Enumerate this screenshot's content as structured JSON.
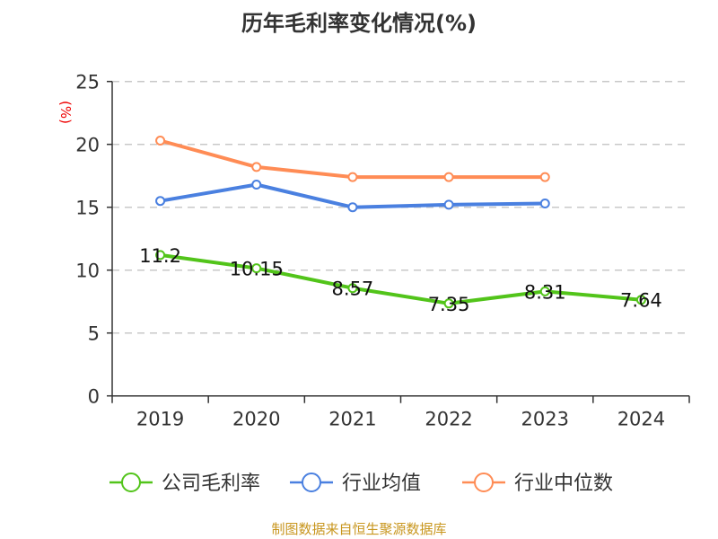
{
  "chart_data": {
    "type": "line",
    "title": "历年毛利率变化情况(%)",
    "ylabel": "(%)",
    "xlabel": "",
    "ylim": [
      0,
      25
    ],
    "yticks": [
      0,
      5,
      10,
      15,
      20,
      25
    ],
    "grid": true,
    "legend_position": "bottom",
    "categories": [
      "2019",
      "2020",
      "2021",
      "2022",
      "2023",
      "2024"
    ],
    "series": [
      {
        "name": "公司毛利率",
        "color": "#52c41a",
        "values": [
          11.2,
          10.15,
          8.57,
          7.35,
          8.31,
          7.64
        ],
        "labels": [
          "11.2",
          "10.15",
          "8.57",
          "7.35",
          "8.31",
          "7.64"
        ]
      },
      {
        "name": "行业均值",
        "color": "#4a80e0",
        "values": [
          15.5,
          16.8,
          15.0,
          15.2,
          15.3,
          null
        ]
      },
      {
        "name": "行业中位数",
        "color": "#ff8c55",
        "values": [
          20.3,
          18.2,
          17.4,
          17.4,
          17.4,
          null
        ]
      }
    ]
  },
  "source": "制图数据来自恒生聚源数据库"
}
